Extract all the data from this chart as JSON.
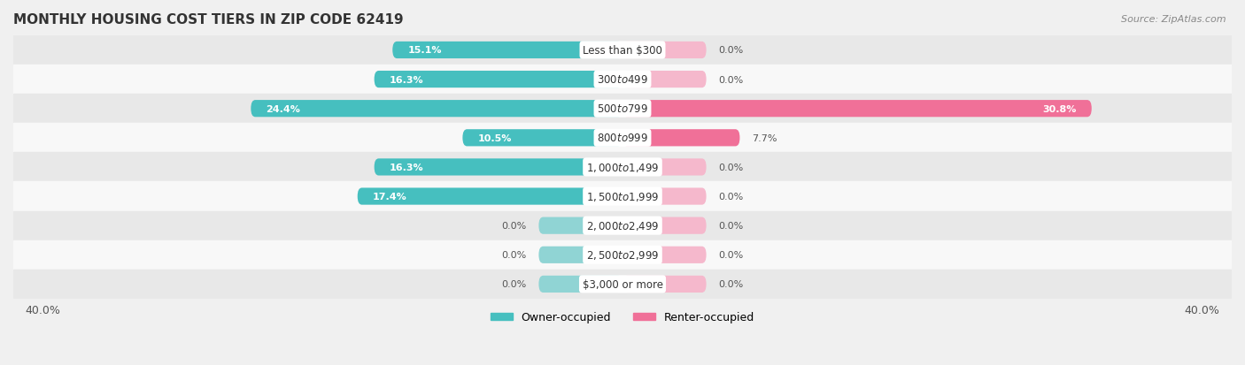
{
  "title": "MONTHLY HOUSING COST TIERS IN ZIP CODE 62419",
  "source": "Source: ZipAtlas.com",
  "categories": [
    "Less than $300",
    "$300 to $499",
    "$500 to $799",
    "$800 to $999",
    "$1,000 to $1,499",
    "$1,500 to $1,999",
    "$2,000 to $2,499",
    "$2,500 to $2,999",
    "$3,000 or more"
  ],
  "owner_values": [
    15.1,
    16.3,
    24.4,
    10.5,
    16.3,
    17.4,
    0.0,
    0.0,
    0.0
  ],
  "renter_values": [
    0.0,
    0.0,
    30.8,
    7.7,
    0.0,
    0.0,
    0.0,
    0.0,
    0.0
  ],
  "owner_color": "#46BFBF",
  "renter_color": "#F07098",
  "owner_color_zero": "#90D4D4",
  "renter_color_zero": "#F5B8CC",
  "bar_height": 0.58,
  "zero_bar_width": 5.5,
  "xlim": [
    -40,
    40
  ],
  "x_axis_labels": [
    "40.0%",
    "40.0%"
  ],
  "background_color": "#F0F0F0",
  "row_bg_even": "#E8E8E8",
  "row_bg_odd": "#F8F8F8",
  "title_fontsize": 11,
  "label_fontsize": 8,
  "category_fontsize": 8.5,
  "legend_fontsize": 9,
  "source_fontsize": 8,
  "threshold_for_inside_label": 8.0
}
